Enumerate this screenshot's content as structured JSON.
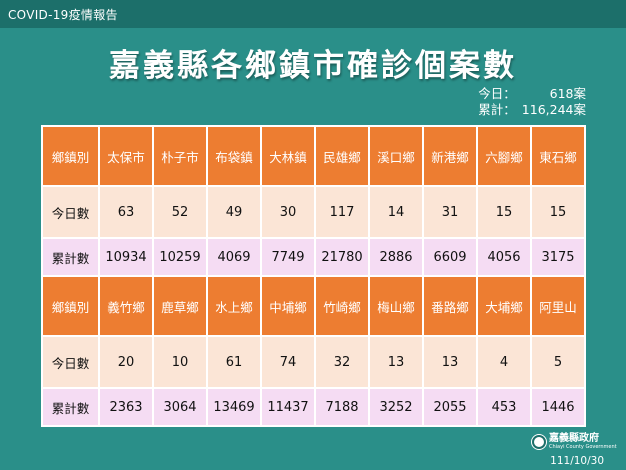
{
  "header": {
    "topbar_label": "COVID-19疫情報告",
    "title": "嘉義縣各鄉鎮市確診個案數"
  },
  "summary": {
    "today_label": "今日：",
    "today_value": "618案",
    "total_label": "累計：",
    "total_value": "116,244案"
  },
  "table": {
    "row_labels": {
      "town": "鄉鎮別",
      "today": "今日數",
      "total": "累計數"
    },
    "blocks": [
      {
        "towns": [
          "太保市",
          "朴子市",
          "布袋鎮",
          "大林鎮",
          "民雄鄉",
          "溪口鄉",
          "新港鄉",
          "六腳鄉",
          "東石鄉"
        ],
        "today": [
          "63",
          "52",
          "49",
          "30",
          "117",
          "14",
          "31",
          "15",
          "15"
        ],
        "total": [
          "10934",
          "10259",
          "4069",
          "7749",
          "21780",
          "2886",
          "6609",
          "4056",
          "3175"
        ]
      },
      {
        "towns": [
          "義竹鄉",
          "鹿草鄉",
          "水上鄉",
          "中埔鄉",
          "竹崎鄉",
          "梅山鄉",
          "番路鄉",
          "大埔鄉",
          "阿里山"
        ],
        "today": [
          "20",
          "10",
          "61",
          "74",
          "32",
          "13",
          "13",
          "4",
          "5"
        ],
        "total": [
          "2363",
          "3064",
          "13469",
          "11437",
          "7188",
          "3252",
          "2055",
          "453",
          "1446"
        ]
      }
    ]
  },
  "footer": {
    "logo_name": "嘉義縣政府",
    "logo_sub": "Chiayi County Government",
    "logo_icon": "county-seal-icon",
    "date": "111/10/30"
  },
  "colors": {
    "background": "#2a8f89",
    "town_row": "#ed7d31",
    "today_row": "#fbe5d6",
    "total_row": "#f5dcf3"
  }
}
